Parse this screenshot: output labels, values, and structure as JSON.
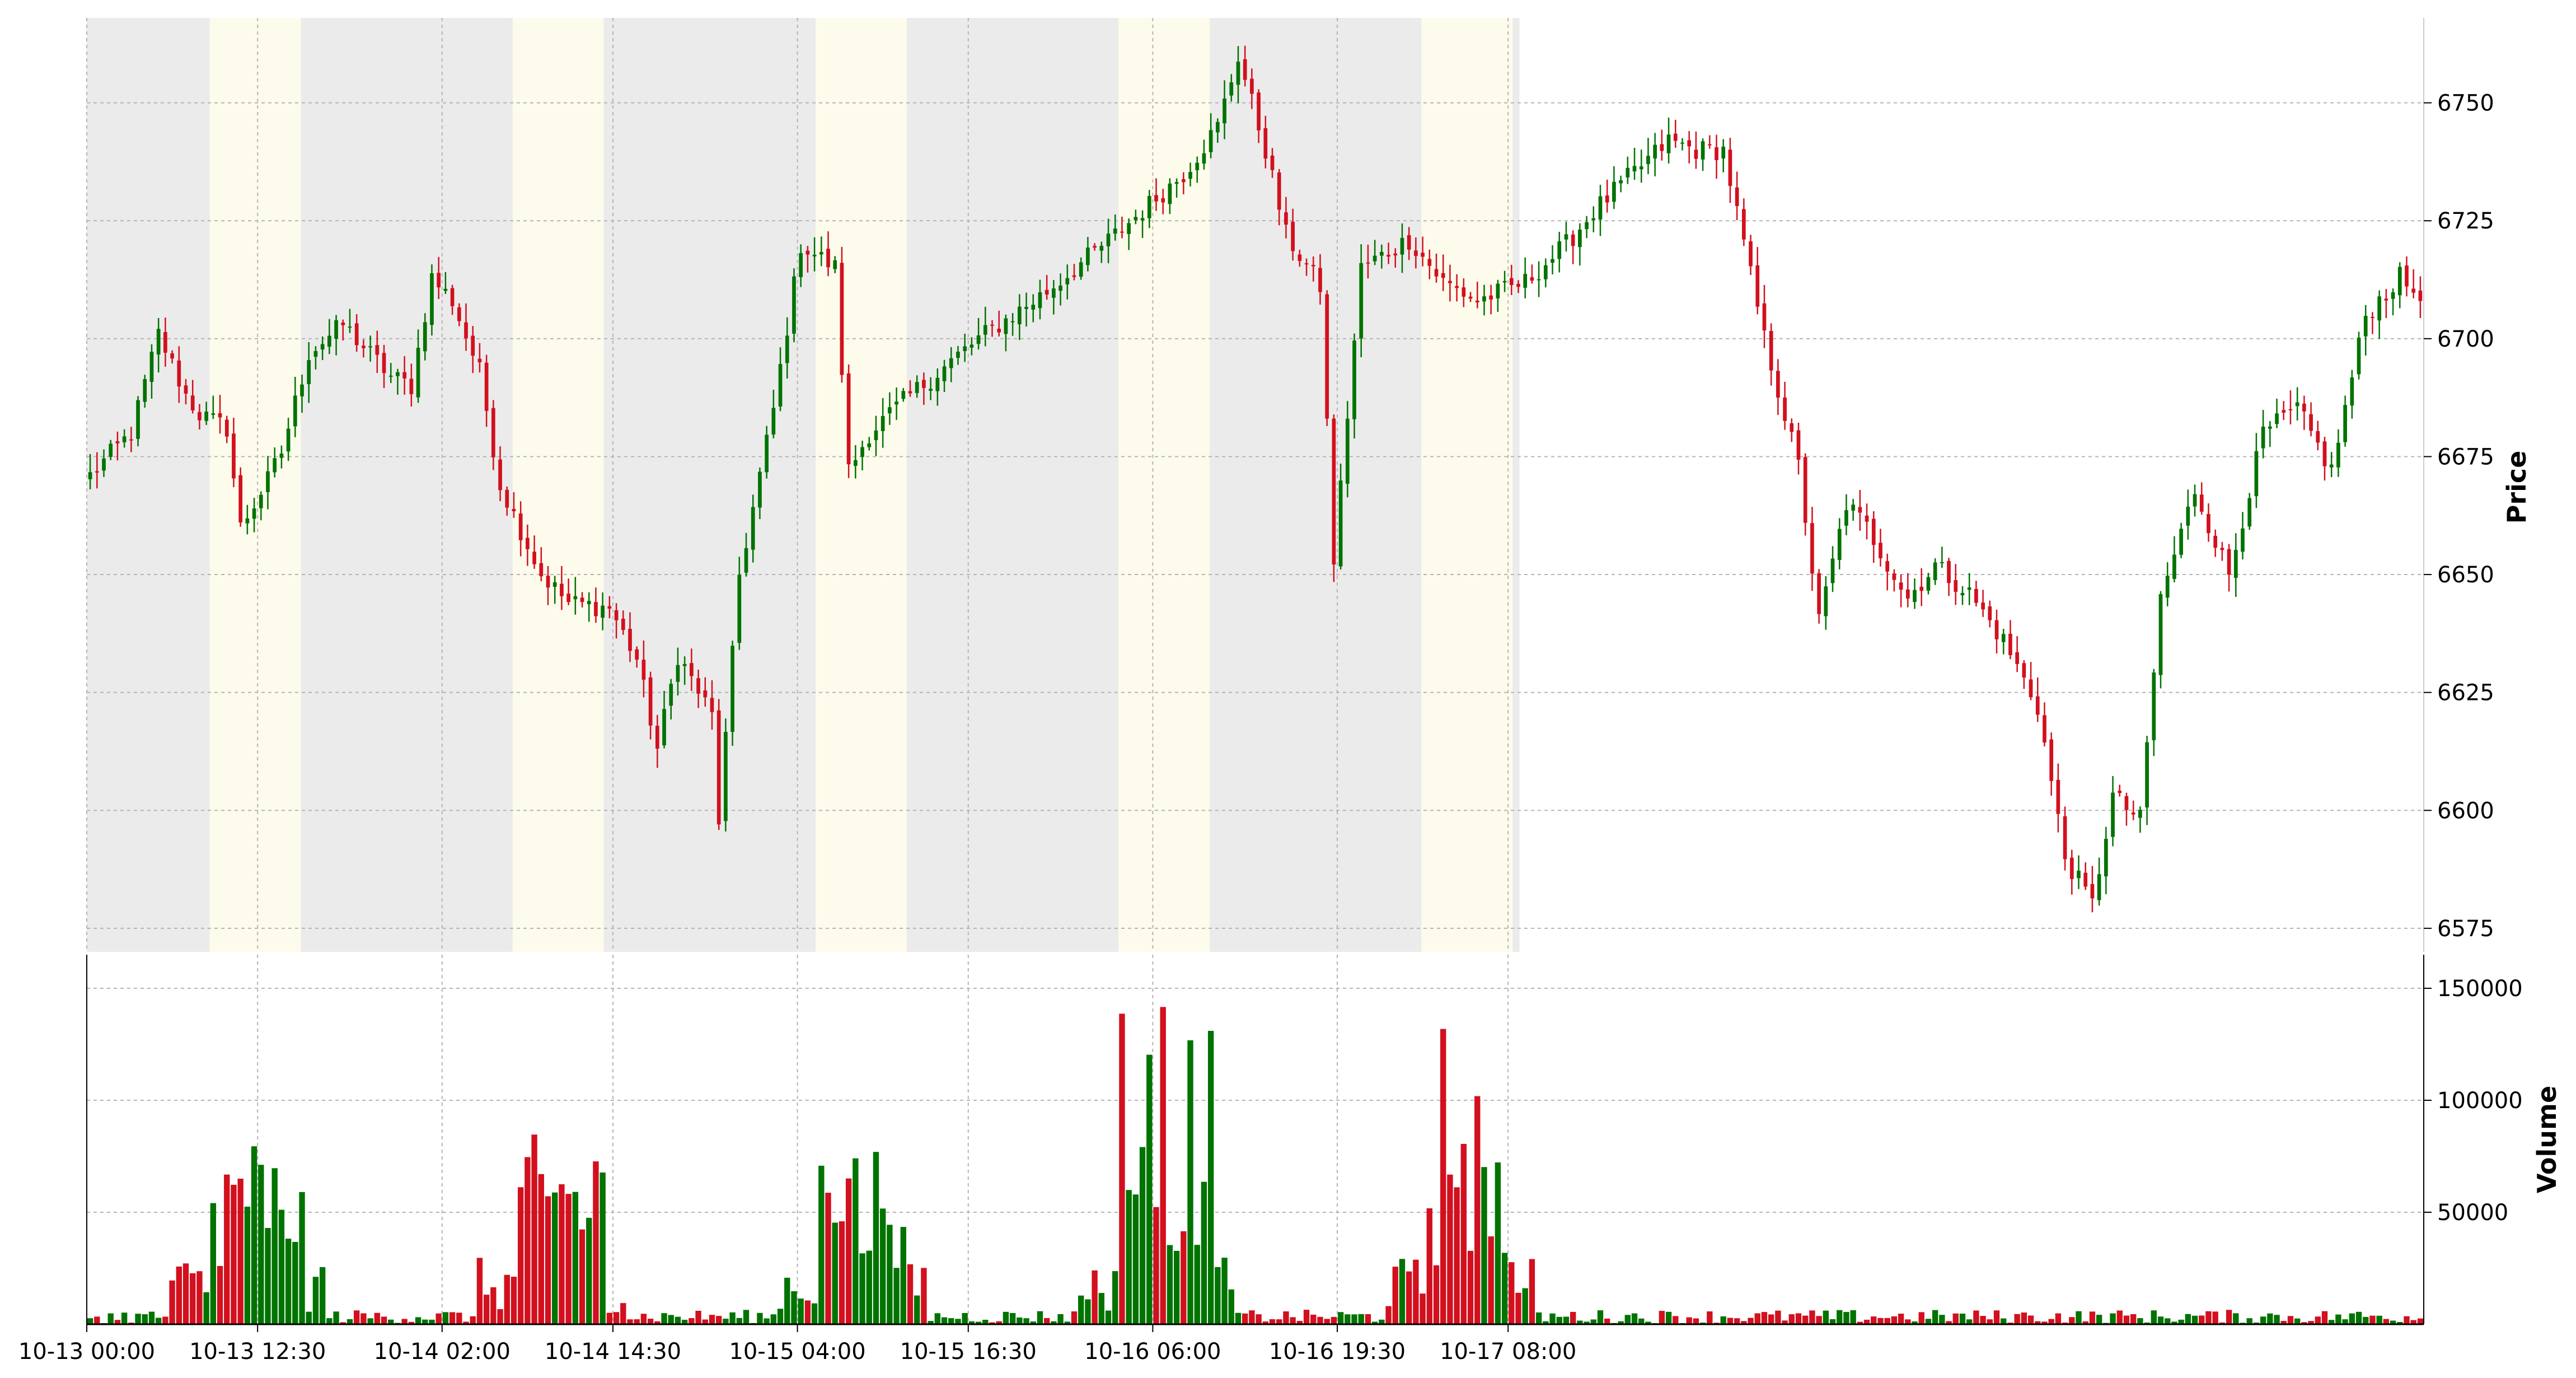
{
  "chart_data": {
    "type": "candlestick",
    "price_panel": {
      "ylabel": "Price",
      "yticks": [
        6575,
        6600,
        6625,
        6650,
        6675,
        6700,
        6725,
        6750
      ],
      "ylim": [
        6570,
        6768
      ],
      "grid": true,
      "bands": [
        {
          "kind": "off",
          "start": "10-13 00:00",
          "end": "10-13 09:00"
        },
        {
          "kind": "session",
          "start": "10-13 09:00",
          "end": "10-13 15:40"
        },
        {
          "kind": "off",
          "start": "10-13 15:40",
          "end": "10-14 07:10"
        },
        {
          "kind": "session",
          "start": "10-14 07:10",
          "end": "10-14 13:50"
        },
        {
          "kind": "off",
          "start": "10-14 13:50",
          "end": "10-15 05:20"
        },
        {
          "kind": "session",
          "start": "10-15 05:20",
          "end": "10-15 12:00"
        },
        {
          "kind": "off",
          "start": "10-15 12:00",
          "end": "10-16 03:30"
        },
        {
          "kind": "session",
          "start": "10-16 03:30",
          "end": "10-16 10:10"
        },
        {
          "kind": "off",
          "start": "10-16 10:10",
          "end": "10-17 01:40"
        },
        {
          "kind": "session",
          "start": "10-17 01:40",
          "end": "10-17 08:20"
        },
        {
          "kind": "off",
          "start": "10-17 08:20",
          "end": "10-17 08:50"
        }
      ],
      "close_path": [
        [
          0,
          6671
        ],
        [
          6,
          6680
        ],
        [
          10,
          6701
        ],
        [
          14,
          6688
        ],
        [
          16,
          6684
        ],
        [
          20,
          6681
        ],
        [
          22,
          6660
        ],
        [
          26,
          6670
        ],
        [
          28,
          6676
        ],
        [
          32,
          6697
        ],
        [
          37,
          6703
        ],
        [
          44,
          6692
        ],
        [
          47,
          6690
        ],
        [
          50,
          6713
        ],
        [
          53,
          6708
        ],
        [
          57,
          6693
        ],
        [
          60,
          6669
        ],
        [
          66,
          6650
        ],
        [
          70,
          6644
        ],
        [
          76,
          6643
        ],
        [
          80,
          6632
        ],
        [
          83,
          6613
        ],
        [
          86,
          6633
        ],
        [
          91,
          6620
        ],
        [
          92,
          6598
        ],
        [
          95,
          6650
        ],
        [
          100,
          6685
        ],
        [
          104,
          6720
        ],
        [
          109,
          6715
        ],
        [
          111,
          6672
        ],
        [
          114,
          6680
        ],
        [
          120,
          6688
        ],
        [
          130,
          6700
        ],
        [
          140,
          6710
        ],
        [
          150,
          6722
        ],
        [
          160,
          6735
        ],
        [
          165,
          6745
        ],
        [
          168,
          6760
        ],
        [
          172,
          6740
        ],
        [
          175,
          6722
        ],
        [
          180,
          6711
        ],
        [
          182,
          6653
        ],
        [
          186,
          6715
        ],
        [
          193,
          6721
        ],
        [
          198,
          6712
        ],
        [
          203,
          6708
        ],
        [
          210,
          6712
        ],
        [
          216,
          6720
        ],
        [
          220,
          6727
        ],
        [
          225,
          6734
        ],
        [
          231,
          6742
        ],
        [
          235,
          6740
        ],
        [
          239,
          6740
        ],
        [
          242,
          6720
        ],
        [
          245,
          6700
        ],
        [
          250,
          6673
        ],
        [
          253,
          6640
        ],
        [
          257,
          6665
        ],
        [
          260,
          6660
        ],
        [
          266,
          6645
        ],
        [
          270,
          6652
        ],
        [
          275,
          6646
        ],
        [
          280,
          6636
        ],
        [
          285,
          6622
        ],
        [
          289,
          6590
        ],
        [
          293,
          6580
        ],
        [
          296,
          6603
        ],
        [
          300,
          6598
        ],
        [
          303,
          6645
        ],
        [
          308,
          6668
        ],
        [
          313,
          6650
        ],
        [
          318,
          6680
        ],
        [
          323,
          6685
        ],
        [
          328,
          6672
        ],
        [
          333,
          6705
        ],
        [
          338,
          6713
        ],
        [
          340,
          6710
        ]
      ]
    },
    "volume_panel": {
      "ylabel": "Volume",
      "yticks": [
        50000,
        100000,
        150000
      ],
      "ylim": [
        0,
        165000
      ],
      "grid": true,
      "colors": {
        "up": "#007300",
        "down": "#d2101e"
      }
    },
    "x_axis": {
      "ticklabels": [
        "10-13 00:00",
        "10-13 12:30",
        "10-14 02:00",
        "10-14 14:30",
        "10-15 04:00",
        "10-15 16:30",
        "10-16 06:00",
        "10-16 19:30",
        "10-17 08:00"
      ],
      "range": [
        "10-13 00:00",
        "10-17 08:50"
      ],
      "interval_minutes": 30
    },
    "colors": {
      "up": "#007300",
      "down": "#d2101e",
      "off_session_band": "#ebebeb",
      "session_band": "#fdfbeb",
      "grid": "#b4b4b4"
    }
  }
}
